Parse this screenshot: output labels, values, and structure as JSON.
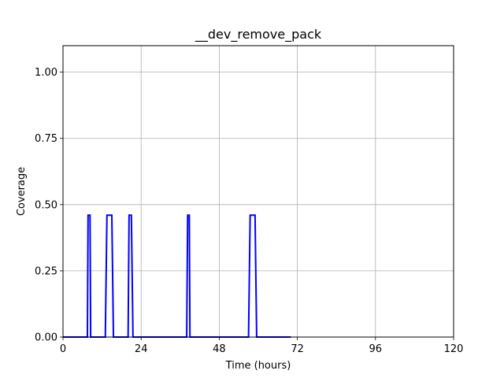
{
  "chart_data": {
    "type": "line",
    "title": "__dev_remove_pack",
    "xlabel": "Time (hours)",
    "ylabel": "Coverage",
    "xlim": [
      0,
      120
    ],
    "ylim": [
      0,
      1.1
    ],
    "xticks": [
      0,
      24,
      48,
      72,
      96,
      120
    ],
    "xtick_labels": [
      "0",
      "24",
      "48",
      "72",
      "96",
      "120"
    ],
    "yticks": [
      0,
      0.25,
      0.5,
      0.75,
      1.0
    ],
    "ytick_labels": [
      "0.00",
      "0.25",
      "0.50",
      "0.75",
      "1.00"
    ],
    "grid": true,
    "series": [
      {
        "color": "#0000ff",
        "x": [
          0,
          7.5,
          7.7,
          8.3,
          8.5,
          13.0,
          13.5,
          15.0,
          15.5,
          20.0,
          20.3,
          21.0,
          21.5,
          38.0,
          38.3,
          38.8,
          39.0,
          57.0,
          57.5,
          59.0,
          59.5,
          70
        ],
        "y": [
          0,
          0,
          0.46,
          0.46,
          0,
          0,
          0.46,
          0.46,
          0,
          0,
          0.46,
          0.46,
          0,
          0,
          0.46,
          0.46,
          0,
          0,
          0.46,
          0.46,
          0,
          0
        ]
      }
    ]
  }
}
